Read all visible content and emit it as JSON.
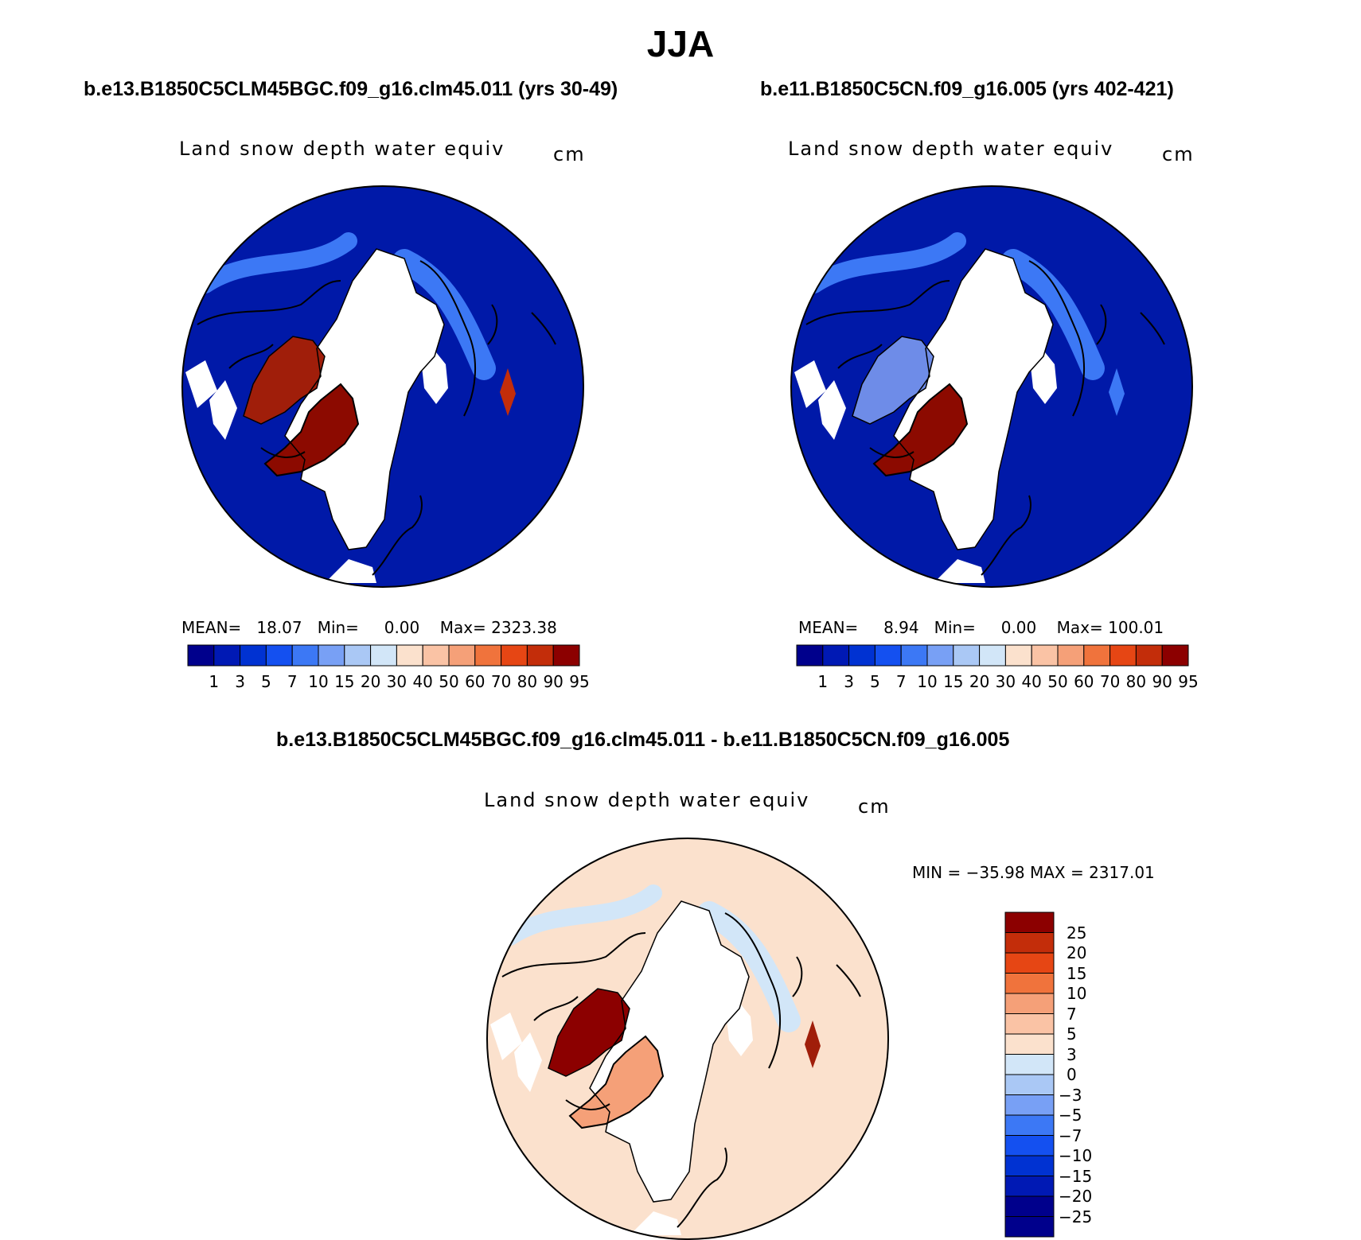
{
  "figure_title": "JJA",
  "panels": [
    {
      "case": "b.e13.B1850C5CLM45BGC.f09_g16.clm45.011 (yrs 30-49)",
      "variable": "Land snow depth water equiv",
      "units": "cm",
      "stats": "MEAN=   18.07   Min=     0.00    Max= 2323.38"
    },
    {
      "case": "b.e11.B1850C5CN.f09_g16.005 (yrs 402-421)",
      "variable": "Land snow depth water equiv",
      "units": "cm",
      "stats": "MEAN=     8.94   Min=     0.00    Max= 100.01"
    },
    {
      "case": "b.e13.B1850C5CLM45BGC.f09_g16.clm45.011 - b.e11.B1850C5CN.f09_g16.005",
      "variable": "Land snow depth water equiv",
      "units": "cm",
      "stats": "MIN = −35.98 MAX = 2317.01"
    }
  ],
  "colorbar_abs": {
    "labels": [
      "1",
      "3",
      "5",
      "7",
      "10",
      "15",
      "20",
      "30",
      "40",
      "50",
      "60",
      "70",
      "80",
      "90",
      "95"
    ],
    "colors": [
      "#00008c",
      "#0019b4",
      "#0032d2",
      "#1450f0",
      "#3c78f5",
      "#78a0f5",
      "#aac8f5",
      "#d2e6f8",
      "#fbe1cd",
      "#fac3a5",
      "#f5a078",
      "#f0733c",
      "#e64614",
      "#c32d0a",
      "#8c0000"
    ]
  },
  "colorbar_diff": {
    "labels": [
      "25",
      "20",
      "15",
      "10",
      "7",
      "5",
      "3",
      "0",
      "−3",
      "−5",
      "−7",
      "−10",
      "−15",
      "−20",
      "−25"
    ],
    "colors": [
      "#8c0000",
      "#c32d0a",
      "#e64614",
      "#f0733c",
      "#f5a078",
      "#fac3a5",
      "#fbe1cd",
      "#d2e6f8",
      "#aac8f5",
      "#78a0f5",
      "#3c78f5",
      "#1450f0",
      "#0032d2",
      "#0019b4",
      "#00008c",
      "#00008c"
    ]
  }
}
